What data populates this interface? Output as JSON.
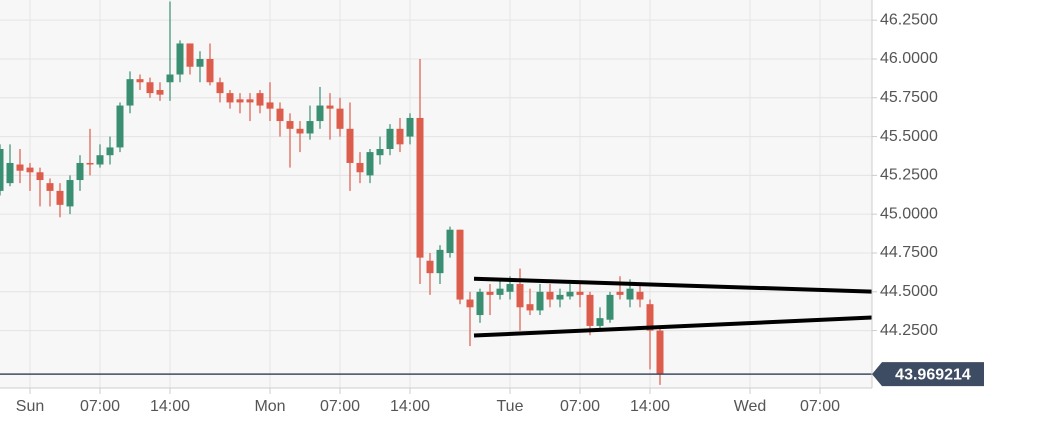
{
  "chart_data": {
    "type": "candlestick",
    "x": [
      -3,
      -2,
      -1,
      0,
      1,
      2,
      3,
      4,
      5,
      6,
      7,
      8,
      9,
      10,
      11,
      12,
      13,
      14,
      15,
      16,
      17,
      18,
      19,
      20,
      21,
      22,
      23,
      24,
      25,
      26,
      27,
      28,
      29,
      30,
      31,
      32,
      33,
      34,
      35,
      36,
      37,
      38,
      39,
      40,
      41,
      42,
      43,
      44,
      45,
      46,
      47,
      48,
      49,
      50,
      51,
      52,
      53,
      54,
      55,
      56,
      57,
      58,
      59,
      60,
      61,
      62,
      63
    ],
    "open": [
      45.15,
      45.2,
      45.32,
      45.3,
      45.27,
      45.2,
      45.15,
      45.05,
      45.22,
      45.33,
      45.32,
      45.38,
      45.43,
      45.7,
      45.87,
      45.85,
      45.8,
      45.85,
      45.9,
      46.1,
      45.95,
      46.0,
      45.85,
      45.78,
      45.74,
      45.74,
      45.78,
      45.72,
      45.68,
      45.6,
      45.55,
      45.52,
      45.6,
      45.7,
      45.68,
      45.55,
      45.33,
      45.25,
      45.38,
      45.42,
      45.55,
      45.5,
      45.62,
      44.7,
      44.62,
      44.75,
      44.9,
      44.45,
      44.35,
      44.5,
      44.48,
      44.5,
      44.55,
      44.42,
      44.38,
      44.5,
      44.45,
      44.47,
      44.5,
      44.48,
      44.28,
      44.32,
      44.5,
      44.45,
      44.5,
      44.42,
      44.25
    ],
    "high": [
      45.45,
      45.45,
      45.42,
      45.33,
      45.3,
      45.23,
      45.2,
      45.25,
      45.38,
      45.55,
      45.45,
      45.5,
      45.72,
      45.92,
      45.9,
      45.88,
      45.85,
      46.37,
      46.12,
      46.1,
      46.05,
      46.1,
      45.88,
      45.8,
      45.78,
      45.78,
      45.8,
      45.85,
      45.72,
      45.65,
      45.6,
      45.7,
      45.82,
      45.78,
      45.75,
      45.72,
      45.4,
      45.42,
      45.5,
      45.58,
      45.62,
      45.65,
      46.0,
      44.75,
      44.8,
      44.92,
      44.9,
      44.5,
      44.52,
      44.55,
      44.58,
      44.6,
      44.65,
      44.52,
      44.55,
      44.55,
      44.52,
      44.55,
      44.55,
      44.5,
      44.4,
      44.5,
      44.6,
      44.58,
      44.55,
      44.45,
      44.28
    ],
    "low": [
      45.12,
      45.18,
      45.2,
      45.15,
      45.05,
      45.05,
      44.98,
      45.0,
      45.15,
      45.25,
      45.3,
      45.32,
      45.4,
      45.65,
      45.8,
      45.75,
      45.73,
      45.73,
      45.85,
      45.9,
      45.85,
      45.83,
      45.72,
      45.68,
      45.65,
      45.6,
      45.65,
      45.6,
      45.5,
      45.3,
      45.4,
      45.48,
      45.55,
      45.48,
      45.5,
      45.15,
      45.2,
      45.2,
      45.32,
      45.38,
      45.4,
      45.45,
      44.55,
      44.48,
      44.55,
      44.72,
      44.42,
      44.15,
      44.3,
      44.35,
      44.45,
      44.45,
      44.25,
      44.35,
      44.35,
      44.4,
      44.4,
      44.45,
      44.4,
      44.22,
      44.25,
      44.3,
      44.45,
      44.4,
      44.4,
      44.0,
      43.9
    ],
    "close": [
      45.42,
      45.33,
      45.28,
      45.27,
      45.22,
      45.15,
      45.06,
      45.22,
      45.33,
      45.32,
      45.38,
      45.43,
      45.7,
      45.87,
      45.85,
      45.78,
      45.77,
      45.9,
      46.1,
      45.95,
      46.0,
      45.85,
      45.78,
      45.72,
      45.72,
      45.72,
      45.7,
      45.68,
      45.6,
      45.55,
      45.52,
      45.6,
      45.7,
      45.68,
      45.55,
      45.33,
      45.27,
      45.4,
      45.42,
      45.55,
      45.45,
      45.62,
      44.72,
      44.62,
      44.77,
      44.9,
      44.45,
      44.4,
      44.5,
      44.48,
      44.52,
      44.55,
      44.4,
      44.38,
      44.5,
      44.45,
      44.48,
      44.5,
      44.48,
      44.28,
      44.33,
      44.48,
      44.48,
      44.52,
      44.45,
      44.25,
      43.97
    ],
    "up_color": "#3a8f72",
    "down_color": "#dc5d4b",
    "xlim": [
      -3,
      84.2
    ],
    "ylim": [
      43.88,
      46.38
    ],
    "xticks": [
      {
        "value": 0,
        "label": "Sun"
      },
      {
        "value": 7,
        "label": "07:00"
      },
      {
        "value": 14,
        "label": "14:00"
      },
      {
        "value": 24,
        "label": "Mon"
      },
      {
        "value": 31,
        "label": "07:00"
      },
      {
        "value": 38,
        "label": "14:00"
      },
      {
        "value": 48,
        "label": "Tue"
      },
      {
        "value": 55,
        "label": "07:00"
      },
      {
        "value": 62,
        "label": "14:00"
      },
      {
        "value": 72,
        "label": "Wed"
      },
      {
        "value": 79,
        "label": "07:00"
      }
    ],
    "yticks": [
      {
        "value": 46.25,
        "label": "46.2500"
      },
      {
        "value": 46.0,
        "label": "46.0000"
      },
      {
        "value": 45.75,
        "label": "45.7500"
      },
      {
        "value": 45.5,
        "label": "45.5000"
      },
      {
        "value": 45.25,
        "label": "45.2500"
      },
      {
        "value": 45.0,
        "label": "45.0000"
      },
      {
        "value": 44.75,
        "label": "44.7500"
      },
      {
        "value": 44.5,
        "label": "44.5000"
      },
      {
        "value": 44.25,
        "label": "44.2500"
      }
    ],
    "grid": true,
    "last_price": 43.969214,
    "trend_lines": [
      {
        "x": [
          44.4,
          84.2
        ],
        "y": [
          44.584,
          44.501
        ]
      },
      {
        "x": [
          44.4,
          84.2
        ],
        "y": [
          44.218,
          44.334
        ]
      }
    ]
  }
}
